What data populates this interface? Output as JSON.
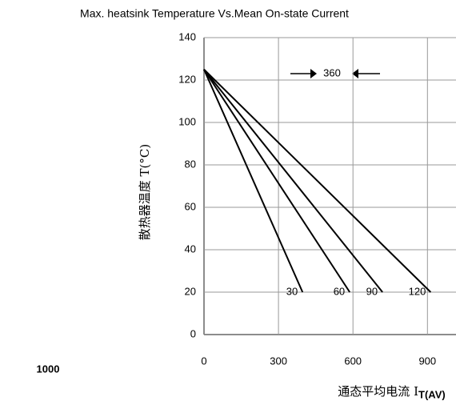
{
  "chart_data": {
    "type": "line",
    "title": "Max. heatsink Temperature Vs.Mean On-state Current",
    "y_label": "散热器温度 T(°C)",
    "x_label": "通态平均电流 I",
    "x_label_sub": "T(AV)",
    "annotations": [
      "360",
      "1000"
    ],
    "xlim": [
      0,
      1015
    ],
    "ylim": [
      0,
      140
    ],
    "xticks": [
      0,
      300,
      600,
      900
    ],
    "yticks": [
      0,
      20,
      40,
      60,
      80,
      100,
      120,
      140
    ],
    "grid": true,
    "series": [
      {
        "name": "30",
        "color": "#000000",
        "x": [
          0,
          397
        ],
        "values": [
          125,
          20
        ]
      },
      {
        "name": "60",
        "color": "#000000",
        "x": [
          0,
          587
        ],
        "values": [
          125,
          20
        ]
      },
      {
        "name": "90",
        "color": "#000000",
        "x": [
          0,
          719
        ],
        "values": [
          125,
          20
        ]
      },
      {
        "name": "120",
        "color": "#000000",
        "x": [
          0,
          913
        ],
        "values": [
          125,
          20
        ]
      }
    ]
  }
}
